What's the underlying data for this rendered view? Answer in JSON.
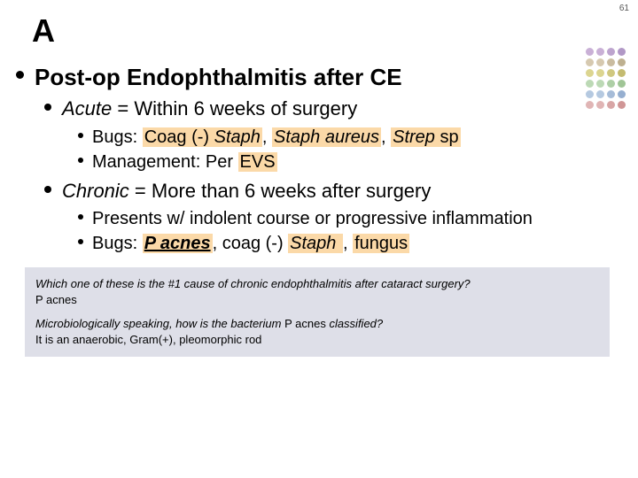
{
  "pageNumber": "61",
  "cornerLetter": "A",
  "dotColors": [
    "#c9b0d6",
    "#c9b0d6",
    "#bda4ce",
    "#b198c6",
    "#d6c9b0",
    "#d6c9b0",
    "#cabca0",
    "#beb090",
    "#dcd590",
    "#dcd590",
    "#d0c880",
    "#c4bb70",
    "#bcd9b5",
    "#bcd9b5",
    "#aecfa6",
    "#a0c596",
    "#b5c9e0",
    "#b5c9e0",
    "#a6bcd8",
    "#96afd0",
    "#e0b5b5",
    "#e0b5b5",
    "#d8a6a6",
    "#d09696"
  ],
  "heading": "Post-op Endophthalmitis after CE",
  "acute": {
    "label_pre": "Acute",
    "label_post": " = Within 6 weeks of surgery",
    "bugs_pre": "Bugs: ",
    "bugs_h1a": "Coag (-) ",
    "bugs_h1b": "Staph",
    "bugs_sep1": ", ",
    "bugs_h2": "Staph aureus",
    "bugs_sep2": ", ",
    "bugs_h3a": "Strep",
    "bugs_h3b": " sp",
    "mgmt_pre": "Management: Per ",
    "mgmt_hl": "EVS"
  },
  "chronic": {
    "label_pre": "Chronic",
    "label_post": " = More than 6 weeks after surgery",
    "presents": "Presents w/ indolent course or progressive inflammation",
    "bugs_pre": "Bugs: ",
    "bugs_h1": "P acnes",
    "bugs_mid": ", coag (-) ",
    "bugs_h2": "Staph ",
    "bugs_sep": ", ",
    "bugs_h3": "fungus"
  },
  "qa": {
    "q1": "Which one of these is the #1 cause of chronic endophthalmitis after cataract surgery?",
    "a1": "P acnes",
    "q2_pre": "Microbiologically speaking, how is the bacterium ",
    "q2_mid": "P acnes",
    "q2_post": " classified?",
    "a2": "It is an anaerobic, Gram(+), pleomorphic rod"
  },
  "colors": {
    "highlight": "#fbd9a8",
    "qaBox": "#dedfe8"
  }
}
